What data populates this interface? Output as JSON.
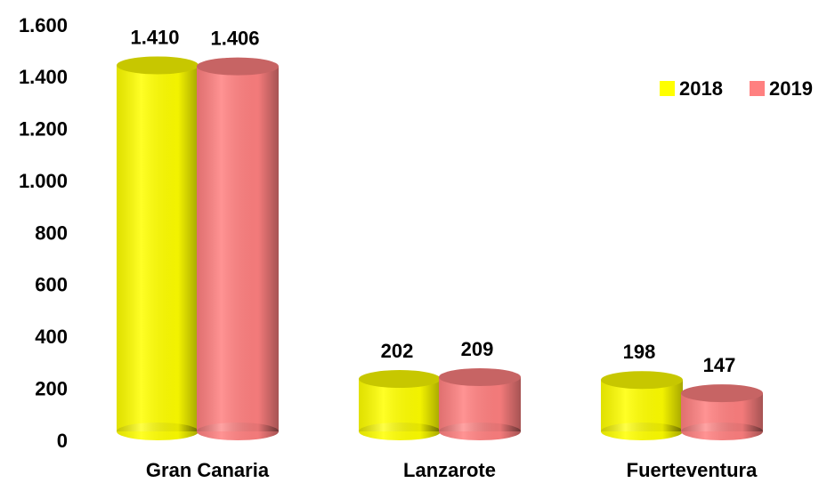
{
  "chart_data": {
    "type": "bar",
    "categories": [
      "Gran Canaria",
      "Lanzarote",
      "Fuerteventura"
    ],
    "series": [
      {
        "name": "2018",
        "color": "#ffff00",
        "values": [
          1410,
          202,
          198
        ],
        "value_labels": [
          "1.410",
          "202",
          "198"
        ]
      },
      {
        "name": "2019",
        "color": "#ff8080",
        "values": [
          1406,
          209,
          147
        ],
        "value_labels": [
          "1.406",
          "209",
          "147"
        ]
      }
    ],
    "ylim": [
      0,
      1600
    ],
    "yticks": [
      0,
      200,
      400,
      600,
      800,
      {
        "value": 1000,
        "label": "1.000"
      },
      {
        "value": 1200,
        "label": "1.200"
      },
      {
        "value": 1400,
        "label": "1.400"
      },
      {
        "value": 1600,
        "label": "1.600"
      }
    ],
    "grid": false,
    "legend": "upper right"
  }
}
